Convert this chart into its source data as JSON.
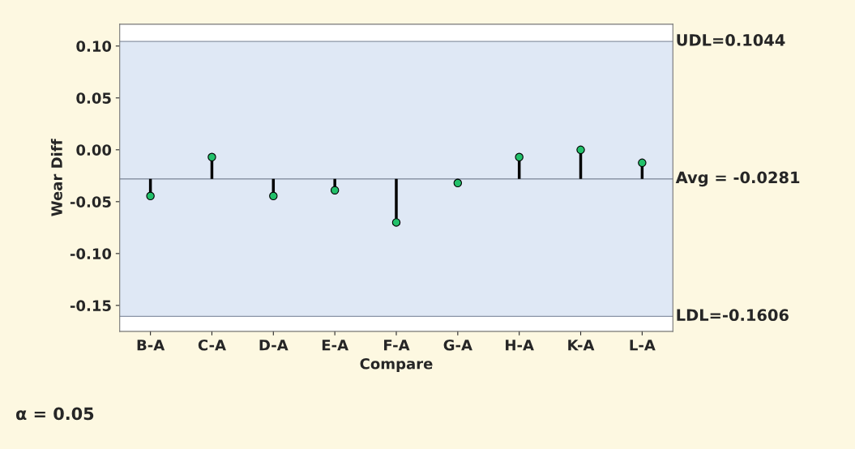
{
  "chart_data": {
    "type": "lollipop",
    "xlabel": "Compare",
    "ylabel": "Wear Diff",
    "categories": [
      "B-A",
      "C-A",
      "D-A",
      "E-A",
      "F-A",
      "G-A",
      "H-A",
      "K-A",
      "L-A"
    ],
    "values": [
      -0.0445,
      -0.007,
      -0.0445,
      -0.039,
      -0.07,
      -0.032,
      -0.007,
      0.0,
      -0.0125
    ],
    "errors": [
      [
        -0.0445,
        -0.0281
      ],
      [
        -0.0281,
        -0.007
      ],
      [
        -0.0445,
        -0.0281
      ],
      [
        -0.039,
        -0.0281
      ],
      [
        -0.07,
        -0.0281
      ],
      [
        -0.032,
        -0.0281
      ],
      [
        -0.0281,
        -0.007
      ],
      [
        -0.0281,
        0.0
      ],
      [
        -0.0281,
        -0.0125
      ]
    ],
    "color": "#22c06a",
    "marker": "circle",
    "ylim": [
      -0.175,
      0.121
    ],
    "yticks": [
      {
        "value": -0.15,
        "label": "-0.15"
      },
      {
        "value": -0.1,
        "label": "-0.10"
      },
      {
        "value": -0.05,
        "label": "-0.05"
      },
      {
        "value": 0,
        "label": "0.00"
      },
      {
        "value": 0.05,
        "label": "0.05"
      },
      {
        "value": 0.1,
        "label": "0.10"
      }
    ],
    "ref_lines": [
      {
        "axis": "y",
        "value": 0.1044,
        "label": "UDL=0.1044",
        "color": "#8a94a6"
      },
      {
        "axis": "y",
        "value": -0.0281,
        "label": "Avg = -0.0281",
        "color": "#8a94a6"
      },
      {
        "axis": "y",
        "value": -0.1606,
        "label": "LDL=-0.1606",
        "color": "#8a94a6"
      }
    ],
    "bands": [
      {
        "axis": "y",
        "from": -0.1606,
        "to": 0.1044,
        "color": "#dfe8f5"
      }
    ],
    "annotations": [
      "α = 0.05"
    ],
    "grid": false,
    "legend": false
  }
}
